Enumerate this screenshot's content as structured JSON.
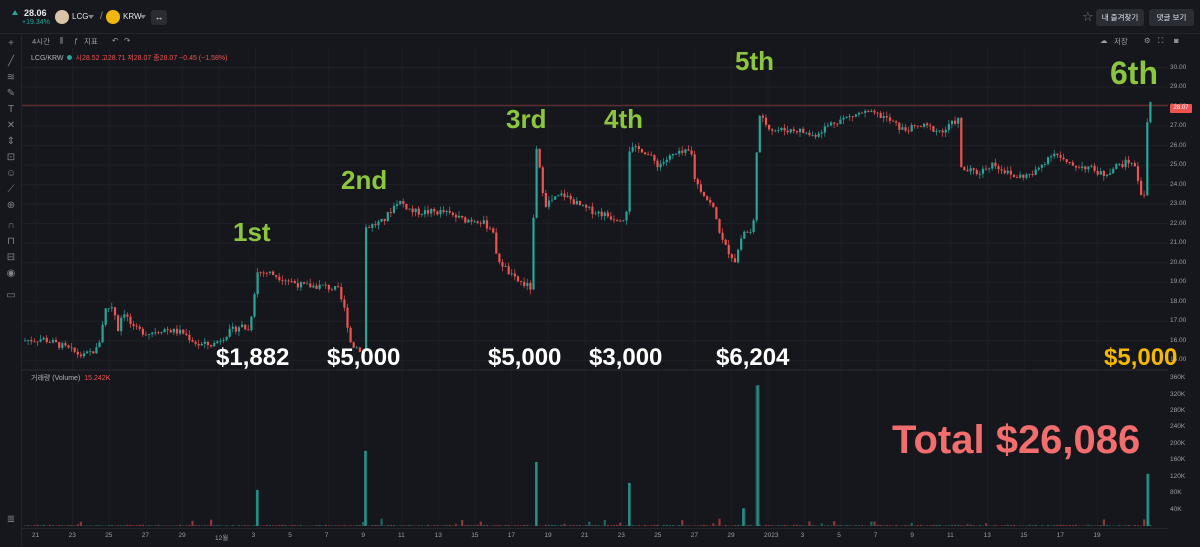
{
  "ticker": {
    "price": "28.06",
    "change": "+19.34%"
  },
  "pair": {
    "base": "LCG",
    "quote": "KRW"
  },
  "header_buttons": {
    "favorite": "내 즐겨찾기",
    "comments": "댓글 보기"
  },
  "toolbar": {
    "interval": "4시간",
    "indicators": "지표",
    "save": "저장"
  },
  "legend": {
    "symbol": "LCG/KRW",
    "ohlc": "시28.52 고28.71 저28.07 종28.07 −0.45 (−1.58%)"
  },
  "volume_legend": {
    "label": "거래량 (Volume)",
    "value": "15.242K"
  },
  "current_price_tag": "28.07",
  "colors": {
    "up": "#26a69a",
    "down": "#ef5350",
    "ordinal": "#8cc63f",
    "total": "#f26d6d",
    "highlight": "#f5b800"
  },
  "purchases": [
    {
      "label": "1st",
      "amount": "$1,882"
    },
    {
      "label": "2nd",
      "amount": "$5,000"
    },
    {
      "label": "3rd",
      "amount": "$5,000"
    },
    {
      "label": "4th",
      "amount": "$3,000"
    },
    {
      "label": "5th",
      "amount": "$6,204"
    },
    {
      "label": "6th",
      "amount": "$5,000"
    }
  ],
  "total": "Total $26,086",
  "chart_data": {
    "type": "candlestick",
    "price_axis": {
      "ticks": [
        "30.00",
        "29.00",
        "28.00",
        "27.00",
        "26.00",
        "25.00",
        "24.00",
        "23.00",
        "22.00",
        "21.00",
        "20.00",
        "19.00",
        "18.00",
        "17.00",
        "16.00",
        "15.00"
      ],
      "range": [
        14.5,
        31
      ]
    },
    "volume_axis": {
      "ticks": [
        "360K",
        "320K",
        "280K",
        "240K",
        "200K",
        "160K",
        "120K",
        "80K",
        "40K"
      ],
      "range": [
        0,
        380
      ]
    },
    "x_ticks": [
      "21",
      "23",
      "25",
      "27",
      "29",
      "12월",
      "3",
      "5",
      "7",
      "9",
      "11",
      "13",
      "15",
      "17",
      "19",
      "21",
      "23",
      "25",
      "27",
      "29",
      "2023",
      "3",
      "5",
      "7",
      "9",
      "11",
      "13",
      "15",
      "17",
      "19"
    ],
    "price_path": [
      [
        0,
        16.0
      ],
      [
        20,
        16.1
      ],
      [
        40,
        15.7
      ],
      [
        60,
        15.2
      ],
      [
        75,
        15.6
      ],
      [
        82,
        17.6
      ],
      [
        90,
        17.8
      ],
      [
        95,
        16.6
      ],
      [
        100,
        17.6
      ],
      [
        110,
        16.6
      ],
      [
        125,
        16.4
      ],
      [
        140,
        16.6
      ],
      [
        160,
        16.4
      ],
      [
        175,
        15.8
      ],
      [
        190,
        15.8
      ],
      [
        205,
        16.4
      ],
      [
        218,
        16.8
      ],
      [
        226,
        16.5
      ],
      [
        234,
        19.5
      ],
      [
        245,
        19.5
      ],
      [
        260,
        19.2
      ],
      [
        280,
        18.8
      ],
      [
        300,
        18.8
      ],
      [
        315,
        18.6
      ],
      [
        322,
        17.5
      ],
      [
        328,
        15.8
      ],
      [
        340,
        15.5
      ],
      [
        342,
        21.8
      ],
      [
        360,
        22.1
      ],
      [
        375,
        23.2
      ],
      [
        390,
        22.6
      ],
      [
        420,
        22.6
      ],
      [
        440,
        22.2
      ],
      [
        455,
        22.2
      ],
      [
        470,
        21.7
      ],
      [
        472,
        20.4
      ],
      [
        490,
        19.2
      ],
      [
        508,
        18.7
      ],
      [
        513,
        25.9
      ],
      [
        522,
        23.0
      ],
      [
        540,
        23.5
      ],
      [
        560,
        22.8
      ],
      [
        580,
        22.5
      ],
      [
        590,
        22.3
      ],
      [
        603,
        22.3
      ],
      [
        606,
        25.8
      ],
      [
        620,
        25.8
      ],
      [
        635,
        25.0
      ],
      [
        650,
        25.5
      ],
      [
        668,
        25.7
      ],
      [
        672,
        24.2
      ],
      [
        690,
        22.8
      ],
      [
        700,
        21.0
      ],
      [
        712,
        20.1
      ],
      [
        720,
        21.6
      ],
      [
        730,
        21.5
      ],
      [
        735,
        27.5
      ],
      [
        750,
        26.8
      ],
      [
        775,
        26.8
      ],
      [
        790,
        26.5
      ],
      [
        810,
        27.2
      ],
      [
        840,
        27.7
      ],
      [
        860,
        27.5
      ],
      [
        880,
        26.8
      ],
      [
        900,
        27.0
      ],
      [
        920,
        26.7
      ],
      [
        935,
        27.4
      ],
      [
        938,
        24.8
      ],
      [
        955,
        24.6
      ],
      [
        970,
        25.1
      ],
      [
        990,
        24.4
      ],
      [
        1010,
        24.5
      ],
      [
        1030,
        25.7
      ],
      [
        1045,
        25.0
      ],
      [
        1065,
        24.9
      ],
      [
        1080,
        24.5
      ],
      [
        1095,
        25.0
      ],
      [
        1110,
        25.2
      ],
      [
        1118,
        23.6
      ],
      [
        1122,
        23.5
      ],
      [
        1125,
        28.6
      ],
      [
        1128,
        28.1
      ]
    ],
    "volume_spikes": [
      {
        "x": 234,
        "v": 88
      },
      {
        "x": 342,
        "v": 183
      },
      {
        "x": 513,
        "v": 156
      },
      {
        "x": 606,
        "v": 105
      },
      {
        "x": 720,
        "v": 43
      },
      {
        "x": 735,
        "v": 343
      },
      {
        "x": 1125,
        "v": 127
      }
    ]
  }
}
